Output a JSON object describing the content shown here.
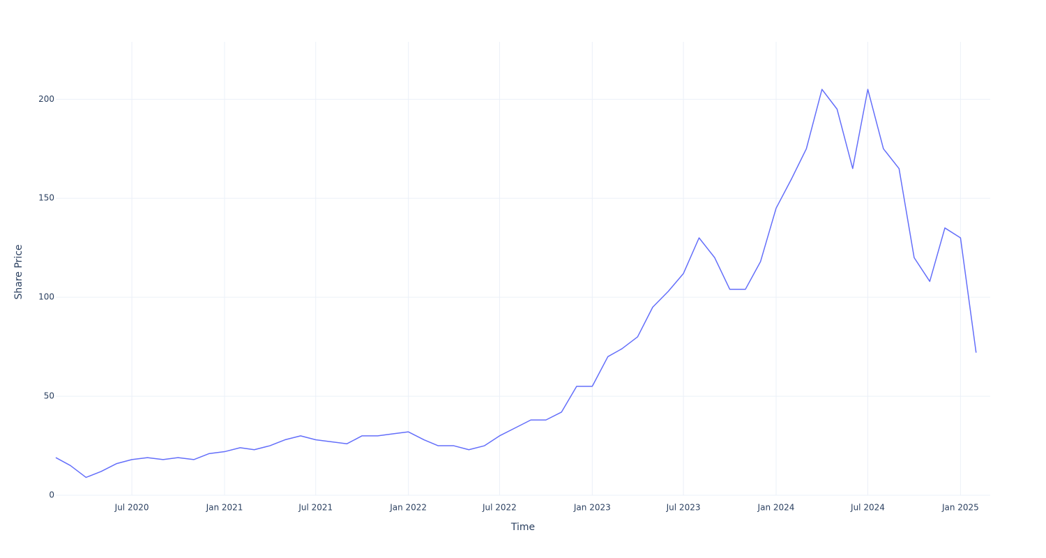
{
  "chart_data": {
    "type": "line",
    "x_label": "Time",
    "y_label": "Share Price",
    "x": [
      "2020-02",
      "2020-03",
      "2020-04",
      "2020-05",
      "2020-06",
      "2020-07",
      "2020-08",
      "2020-09",
      "2020-10",
      "2020-11",
      "2020-12",
      "2021-01",
      "2021-02",
      "2021-03",
      "2021-04",
      "2021-05",
      "2021-06",
      "2021-07",
      "2021-08",
      "2021-09",
      "2021-10",
      "2021-11",
      "2021-12",
      "2022-01",
      "2022-02",
      "2022-03",
      "2022-04",
      "2022-05",
      "2022-06",
      "2022-07",
      "2022-08",
      "2022-09",
      "2022-10",
      "2022-11",
      "2022-12",
      "2023-01",
      "2023-02",
      "2023-03",
      "2023-04",
      "2023-05",
      "2023-06",
      "2023-07",
      "2023-08",
      "2023-09",
      "2023-10",
      "2023-11",
      "2023-12",
      "2024-01",
      "2024-02",
      "2024-03",
      "2024-04",
      "2024-05",
      "2024-06",
      "2024-07",
      "2024-08",
      "2024-09",
      "2024-10",
      "2024-11",
      "2024-12",
      "2025-01",
      "2025-02"
    ],
    "series": [
      {
        "color": "#636efa",
        "values": [
          19,
          15,
          9,
          12,
          16,
          18,
          19,
          18,
          19,
          18,
          21,
          22,
          24,
          23,
          25,
          28,
          30,
          28,
          27,
          26,
          30,
          30,
          31,
          32,
          28,
          25,
          25,
          23,
          25,
          30,
          34,
          38,
          38,
          42,
          55,
          55,
          70,
          74,
          80,
          95,
          103,
          112,
          130,
          120,
          104,
          104,
          118,
          145,
          160,
          175,
          205,
          195,
          165,
          205,
          175,
          165,
          120,
          108,
          135,
          130,
          72
        ]
      }
    ],
    "xlim": [
      "2020-02",
      "2025-03"
    ],
    "xticks": [
      {
        "value": "2020-07",
        "label": "Jul 2020"
      },
      {
        "value": "2021-01",
        "label": "Jan 2021"
      },
      {
        "value": "2021-07",
        "label": "Jul 2021"
      },
      {
        "value": "2022-01",
        "label": "Jan 2022"
      },
      {
        "value": "2022-07",
        "label": "Jul 2022"
      },
      {
        "value": "2023-01",
        "label": "Jan 2023"
      },
      {
        "value": "2023-07",
        "label": "Jul 2023"
      },
      {
        "value": "2024-01",
        "label": "Jan 2024"
      },
      {
        "value": "2024-07",
        "label": "Jul 2024"
      },
      {
        "value": "2025-01",
        "label": "Jan 2025"
      }
    ],
    "ylim": [
      0,
      229
    ],
    "yticks": [
      0,
      50,
      100,
      150,
      200
    ],
    "grid": true
  }
}
